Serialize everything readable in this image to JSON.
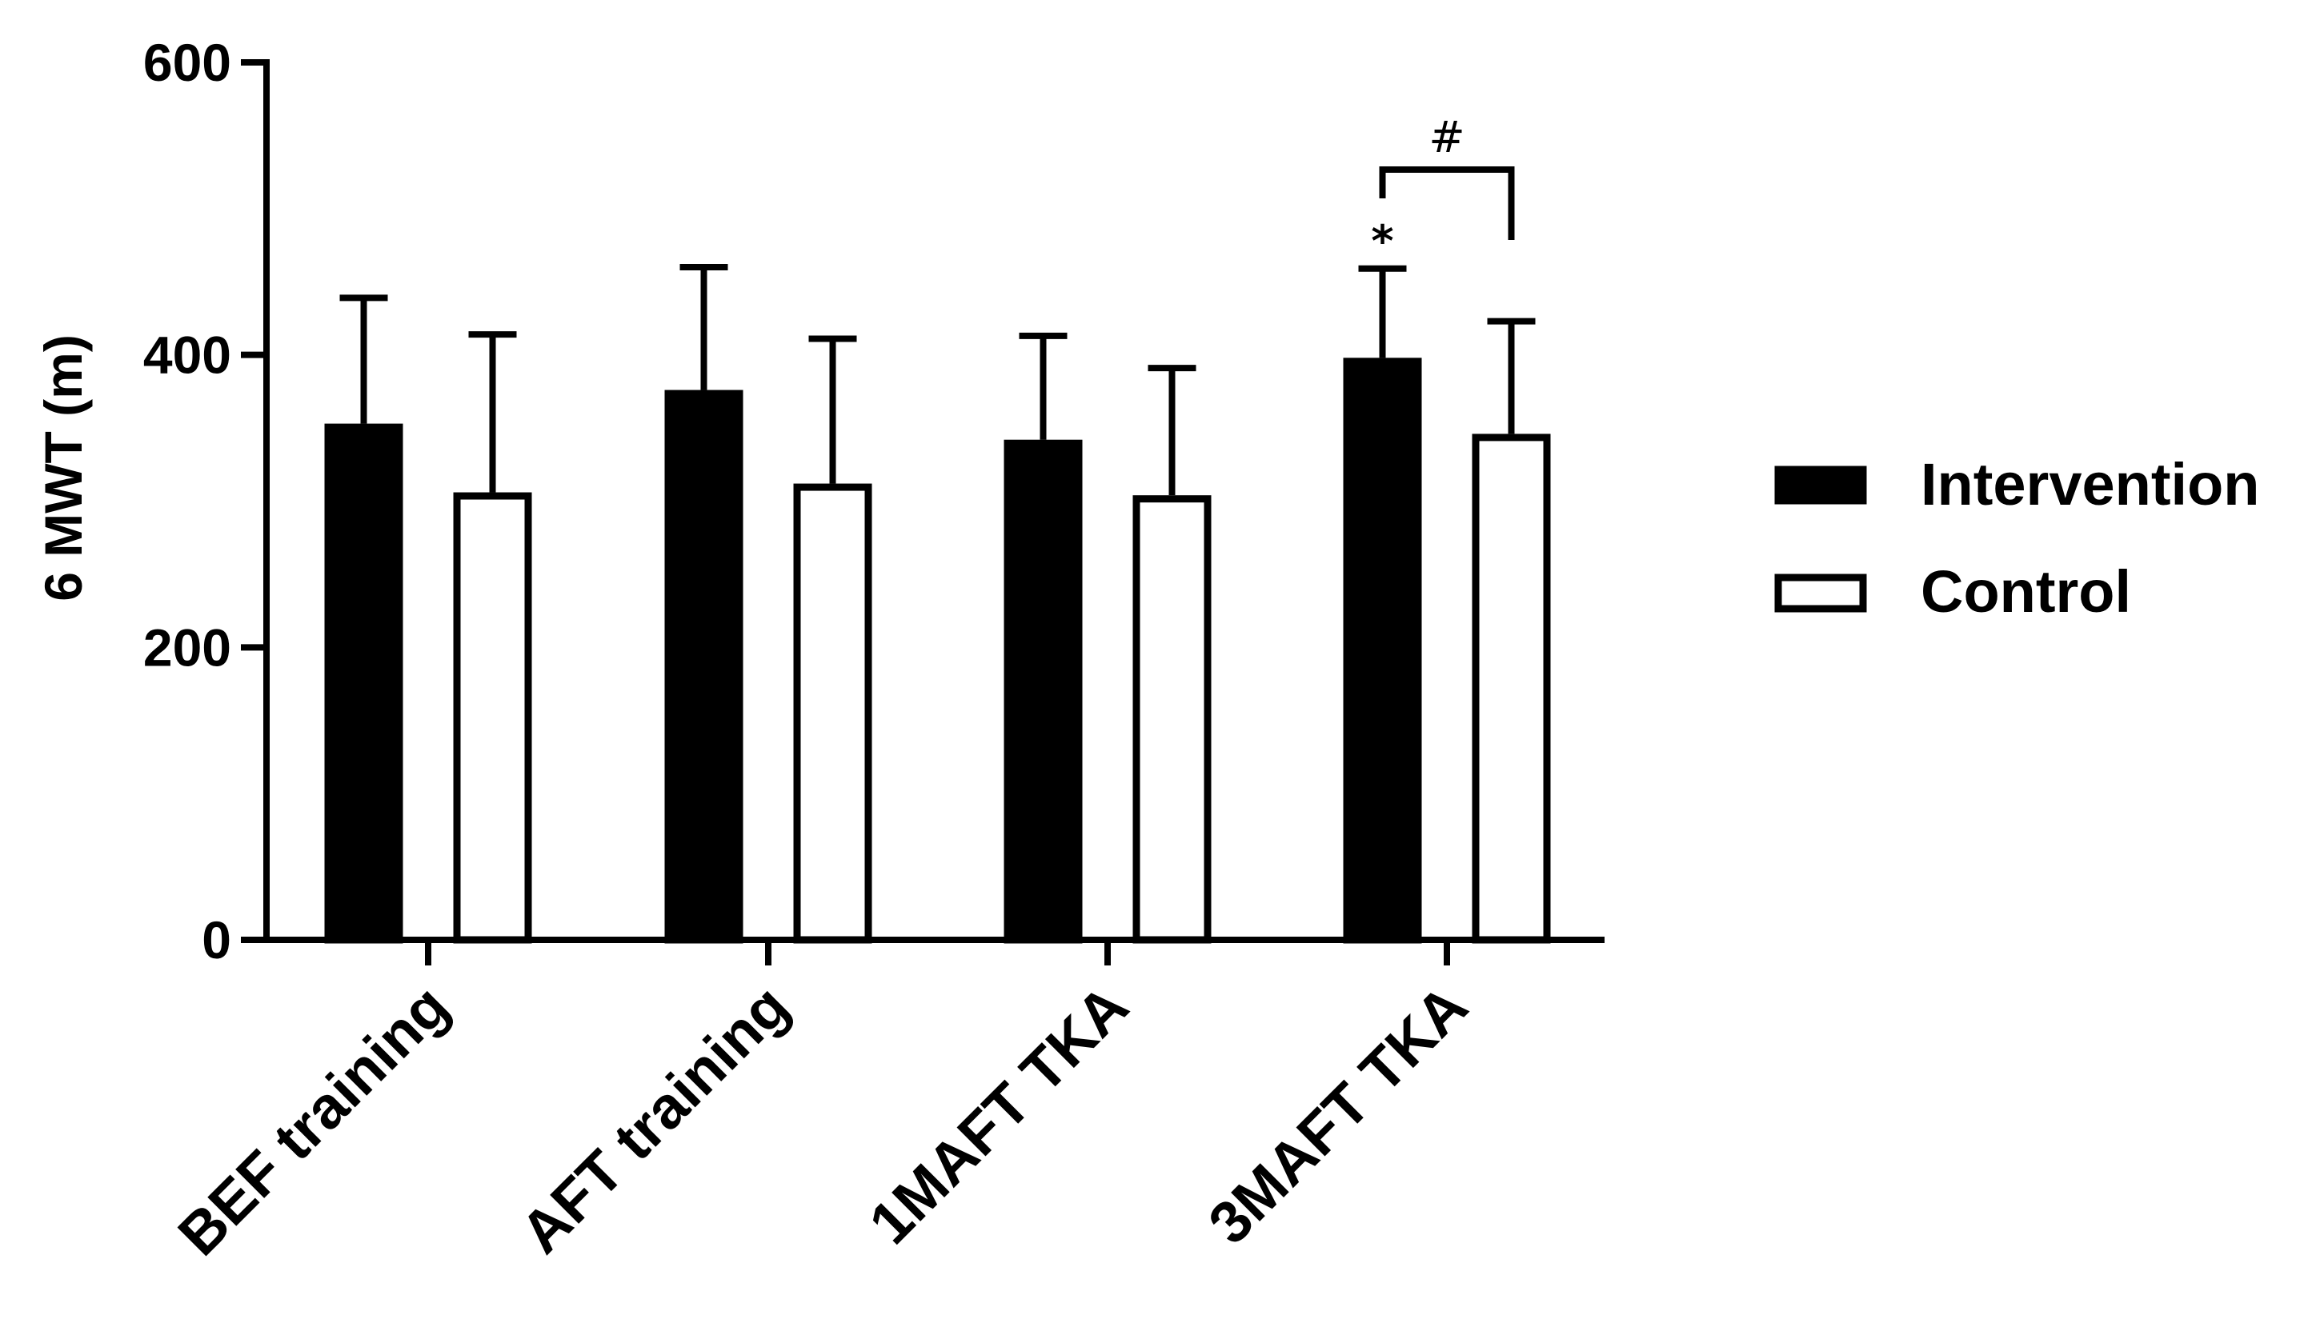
{
  "chart_data": {
    "type": "bar",
    "categories": [
      "BEF training",
      "AFT training",
      "1MAFT TKA",
      "3MAFT TKA"
    ],
    "series": [
      {
        "name": "Intervention",
        "values": [
          353,
          376,
          342,
          398
        ],
        "errors": [
          86,
          84,
          71,
          61
        ],
        "fill": "#000000"
      },
      {
        "name": "Control",
        "values": [
          306,
          312,
          304,
          346
        ],
        "errors": [
          108,
          99,
          87,
          77
        ],
        "fill": "#ffffff"
      }
    ],
    "ylabel": "6 MWT (m)",
    "ylim": [
      0,
      600
    ],
    "yticks": [
      0,
      200,
      400,
      600
    ],
    "grid": false,
    "legend_position": "right",
    "annotations": [
      {
        "text": "*",
        "category": 3,
        "series": 0
      },
      {
        "text": "#",
        "category": 3,
        "bracket": [
          0,
          1
        ]
      }
    ],
    "colors": {
      "ink": "#000000",
      "background": "#ffffff"
    }
  }
}
